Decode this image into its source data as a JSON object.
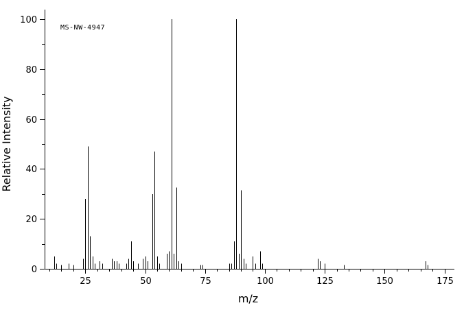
{
  "chart": {
    "annotation": "MS-NW-4947",
    "xlabel": "m/z",
    "ylabel": "Relative Intensity"
  },
  "chart_data": {
    "type": "bar",
    "subtype": "mass-spectrum-stick-plot",
    "title": "",
    "annotation": "MS-NW-4947",
    "xlabel": "m/z",
    "ylabel": "Relative Intensity",
    "xlim": [
      8,
      178
    ],
    "ylim": [
      0,
      100
    ],
    "x_major_ticks": [
      25,
      50,
      75,
      100,
      125,
      150,
      175
    ],
    "x_minor_tick_step": 5,
    "y_major_ticks": [
      0,
      20,
      40,
      60,
      80,
      100
    ],
    "y_minor_tick_step": 10,
    "grid": false,
    "legend": "none",
    "bar_color": "#000000",
    "peaks": [
      [
        12,
        5
      ],
      [
        13,
        2
      ],
      [
        15,
        1.5
      ],
      [
        18,
        2
      ],
      [
        20,
        1.5
      ],
      [
        24,
        4
      ],
      [
        25,
        28
      ],
      [
        26,
        49
      ],
      [
        27,
        13
      ],
      [
        28,
        5
      ],
      [
        29,
        2
      ],
      [
        31,
        3
      ],
      [
        32,
        2
      ],
      [
        36,
        4
      ],
      [
        37,
        3
      ],
      [
        38,
        3
      ],
      [
        39,
        2
      ],
      [
        42,
        2
      ],
      [
        43,
        4
      ],
      [
        44,
        11
      ],
      [
        45,
        3
      ],
      [
        47,
        2
      ],
      [
        49,
        4
      ],
      [
        50,
        5
      ],
      [
        51,
        3
      ],
      [
        53,
        30
      ],
      [
        54,
        47
      ],
      [
        55,
        5
      ],
      [
        56,
        2
      ],
      [
        59,
        6
      ],
      [
        60,
        7
      ],
      [
        61,
        100
      ],
      [
        62,
        6
      ],
      [
        63,
        32.5
      ],
      [
        64,
        3
      ],
      [
        65,
        2
      ],
      [
        73,
        1.5
      ],
      [
        74,
        1.5
      ],
      [
        85,
        2
      ],
      [
        86,
        2
      ],
      [
        87,
        11
      ],
      [
        88,
        100
      ],
      [
        89,
        6
      ],
      [
        90,
        31.5
      ],
      [
        91,
        4
      ],
      [
        92,
        2
      ],
      [
        95,
        5
      ],
      [
        96,
        2
      ],
      [
        98,
        7
      ],
      [
        99,
        2
      ],
      [
        122,
        4
      ],
      [
        123,
        3
      ],
      [
        125,
        2
      ],
      [
        133,
        1.5
      ],
      [
        167,
        3
      ],
      [
        168,
        1.5
      ]
    ]
  }
}
